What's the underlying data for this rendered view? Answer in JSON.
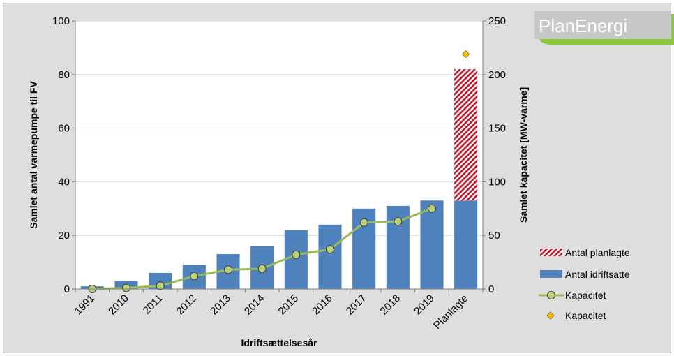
{
  "chart_data": {
    "type": "bar",
    "categories": [
      "1991",
      "2010",
      "2011",
      "2012",
      "2013",
      "2014",
      "2015",
      "2016",
      "2017",
      "2018",
      "2019",
      "Planlagte"
    ],
    "series": [
      {
        "name": "Antal idriftsatte",
        "kind": "bar",
        "axis": "left",
        "color": "#4f81bd",
        "values": [
          1,
          3,
          6,
          9,
          13,
          16,
          22,
          24,
          30,
          31,
          33,
          33
        ]
      },
      {
        "name": "Antal planlagte",
        "kind": "bar-stacked-hatched",
        "axis": "left",
        "color": "#b22222",
        "values": [
          0,
          0,
          0,
          0,
          0,
          0,
          0,
          0,
          0,
          0,
          0,
          49
        ]
      },
      {
        "name": "Kapacitet",
        "kind": "line",
        "axis": "right",
        "color": "#9bbb59",
        "marker_color": "#b8d17a",
        "values": [
          0,
          1,
          3,
          12,
          18,
          19,
          32,
          37,
          62,
          63,
          75,
          null
        ]
      },
      {
        "name": "Kapacitet",
        "kind": "marker",
        "axis": "right",
        "color": "#ffc000",
        "values": [
          null,
          null,
          null,
          null,
          null,
          null,
          null,
          null,
          null,
          null,
          null,
          219
        ]
      }
    ],
    "xlabel": "Idriftsættelsesår",
    "ylabel": "Samlet antal varmepumpe til FV",
    "y2label": "Samlet kapacitet [MW-varme]",
    "ylim": [
      0,
      100
    ],
    "y2lim": [
      0,
      250
    ],
    "yticks": [
      "0",
      "20",
      "40",
      "60",
      "80",
      "100"
    ],
    "y2ticks": [
      "0",
      "50",
      "100",
      "150",
      "200",
      "250"
    ],
    "grid": true,
    "legend_position": "right-bottom"
  },
  "legend": {
    "planned": "Antal planlagte",
    "commissioned": "Antal idriftsatte",
    "capacity_line": "Kapacitet",
    "capacity_marker": "Kapacitet"
  },
  "logo": {
    "text": "PlanEnergi",
    "accent_color": "#8dc63f"
  }
}
